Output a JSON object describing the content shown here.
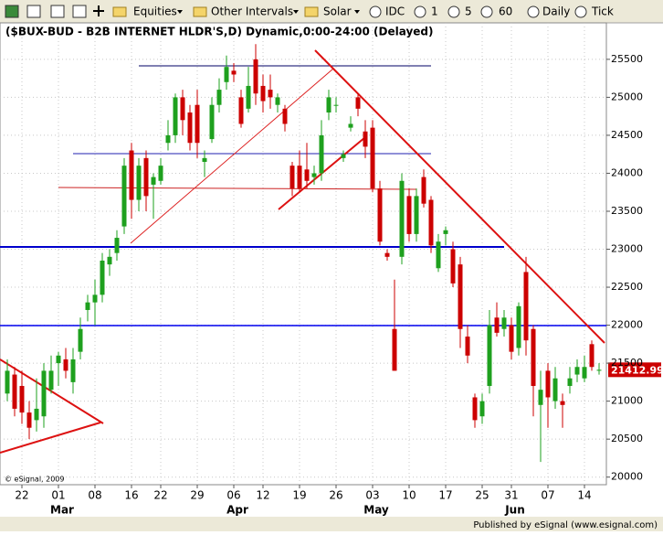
{
  "toolbar": {
    "items": [
      "Equities",
      "Other Intervals",
      "Solar",
      "IDC",
      "1",
      "5",
      "60",
      "Daily",
      "Tick"
    ]
  },
  "chart_data": {
    "type": "candlestick",
    "title": "($BUX-BUD - B2B INTERNET HLDR'S,D) Dynamic,0:00-24:00 (Delayed)",
    "x": [
      0,
      1,
      2,
      3,
      4,
      5,
      6,
      7,
      8,
      9,
      10,
      11,
      12,
      13,
      14,
      15,
      16,
      17,
      18,
      19,
      20,
      21,
      22,
      23,
      24,
      25,
      26,
      27,
      28,
      29,
      30,
      31,
      32,
      33,
      34,
      35,
      36,
      37,
      38,
      39,
      40,
      41,
      42,
      43,
      44,
      45,
      46,
      47,
      48,
      49,
      50,
      51,
      52,
      53,
      54,
      55,
      56,
      57,
      58,
      59,
      60,
      61,
      62,
      63,
      64,
      65,
      66,
      67,
      68,
      69,
      70,
      71,
      72,
      73,
      74,
      75,
      76,
      77,
      78,
      79,
      80,
      81
    ],
    "open": [
      21100,
      21350,
      21200,
      20850,
      20750,
      20800,
      21150,
      21500,
      21550,
      21250,
      21650,
      22200,
      22300,
      22400,
      22800,
      22950,
      23300,
      24300,
      23650,
      24200,
      23850,
      23900,
      24400,
      24500,
      25000,
      24800,
      24900,
      24150,
      24450,
      24900,
      25200,
      25350,
      25000,
      24850,
      25500,
      25150,
      25100,
      24900,
      24850,
      24100,
      24100,
      24050,
      23950,
      24000,
      24800,
      24900,
      24200,
      24600,
      25000,
      24550,
      24600,
      23800,
      22950,
      21950,
      22900,
      23700,
      23200,
      23950,
      23650,
      22750,
      23200,
      23000,
      22800,
      21850,
      21050,
      20800,
      21200,
      22100,
      21950,
      22000,
      21700,
      22700,
      21950,
      20950,
      21400,
      21000,
      21000,
      21200,
      21350,
      21300,
      21750,
      21400
    ],
    "high": [
      21550,
      21450,
      21400,
      21000,
      21300,
      21500,
      21600,
      21650,
      21700,
      21700,
      22100,
      22400,
      22600,
      22950,
      23000,
      23250,
      24200,
      24400,
      24200,
      24300,
      24000,
      24200,
      24700,
      25050,
      25100,
      24900,
      25100,
      24300,
      25000,
      25250,
      25550,
      25450,
      25100,
      25400,
      25700,
      25300,
      25300,
      25050,
      24900,
      24150,
      24300,
      24400,
      24100,
      24700,
      25100,
      25000,
      24300,
      24750,
      25050,
      24700,
      24700,
      23900,
      23000,
      22600,
      24000,
      23800,
      23800,
      24050,
      23700,
      23200,
      23300,
      23100,
      22900,
      22000,
      21100,
      21100,
      22200,
      22300,
      22200,
      22100,
      22300,
      22900,
      22000,
      21400,
      21500,
      21450,
      21100,
      21450,
      21550,
      21600,
      21800,
      21500
    ],
    "low": [
      21000,
      20800,
      20700,
      20500,
      20600,
      20650,
      21100,
      21200,
      21300,
      21100,
      21550,
      22050,
      22000,
      22300,
      22650,
      22850,
      23200,
      23400,
      23500,
      23500,
      23400,
      23850,
      24300,
      24400,
      24500,
      24300,
      24200,
      23950,
      24400,
      24800,
      25100,
      25200,
      24600,
      24800,
      24900,
      24800,
      24850,
      24800,
      24550,
      23700,
      23750,
      23800,
      23850,
      23900,
      24700,
      24800,
      24150,
      24550,
      24750,
      24200,
      23750,
      23050,
      22850,
      21400,
      22800,
      23100,
      23100,
      23550,
      22950,
      22700,
      23050,
      22500,
      21700,
      21500,
      20650,
      20700,
      21100,
      21850,
      21850,
      21550,
      21600,
      21600,
      20800,
      20200,
      20650,
      20900,
      20650,
      21100,
      21250,
      21250,
      21400,
      21350
    ],
    "close": [
      21400,
      20900,
      20850,
      20650,
      20900,
      21400,
      21400,
      21600,
      21400,
      21550,
      21950,
      22300,
      22400,
      22850,
      22900,
      23150,
      24100,
      23650,
      24100,
      23700,
      23950,
      24100,
      24500,
      25000,
      24700,
      24400,
      24400,
      24200,
      24900,
      25100,
      25400,
      25300,
      24650,
      25150,
      25050,
      24950,
      25000,
      25000,
      24650,
      23800,
      23800,
      23900,
      24000,
      24500,
      25000,
      24900,
      24250,
      24650,
      24850,
      24350,
      23800,
      23100,
      22900,
      21400,
      23900,
      23200,
      23700,
      23600,
      23050,
      23100,
      23250,
      22550,
      21950,
      21600,
      20750,
      21000,
      22000,
      21900,
      22100,
      21650,
      22250,
      21800,
      21200,
      21150,
      21050,
      21300,
      20950,
      21300,
      21450,
      21450,
      21450,
      21412.99
    ],
    "up_color": "#1ea01e",
    "down_color": "#cc0000",
    "xlim": [
      -1,
      82
    ],
    "xticks": [
      {
        "value": 2,
        "label": "22"
      },
      {
        "value": 7,
        "label": "01"
      },
      {
        "value": 12,
        "label": "08"
      },
      {
        "value": 17,
        "label": "16"
      },
      {
        "value": 21,
        "label": "22"
      },
      {
        "value": 26,
        "label": "29"
      },
      {
        "value": 31,
        "label": "06"
      },
      {
        "value": 35,
        "label": "12"
      },
      {
        "value": 40,
        "label": "19"
      },
      {
        "value": 45,
        "label": "26"
      },
      {
        "value": 50,
        "label": "03"
      },
      {
        "value": 55,
        "label": "10"
      },
      {
        "value": 60,
        "label": "17"
      },
      {
        "value": 65,
        "label": "25"
      },
      {
        "value": 69,
        "label": "31"
      },
      {
        "value": 74,
        "label": "07"
      },
      {
        "value": 79,
        "label": "14"
      }
    ],
    "month_ticks": [
      {
        "value": 7,
        "label": "Mar"
      },
      {
        "value": 31,
        "label": "Apr"
      },
      {
        "value": 50,
        "label": "May"
      },
      {
        "value": 69,
        "label": "Jun"
      }
    ],
    "ylim": [
      19900,
      25980
    ],
    "yticks": [
      20000,
      20500,
      21000,
      21500,
      22000,
      22500,
      23000,
      23500,
      24000,
      24500,
      25000,
      25500
    ],
    "grid": true,
    "copyright": "© eSignal, 2009"
  },
  "footer": "Published by eSignal (www.esignal.com)"
}
